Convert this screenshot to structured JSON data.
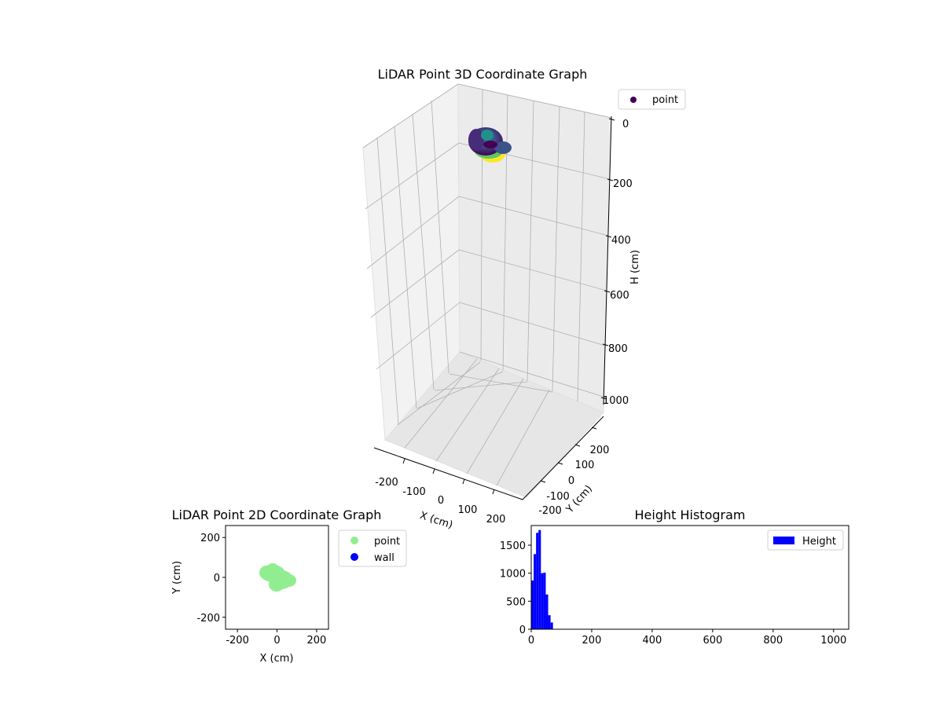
{
  "chart_data": [
    {
      "type": "scatter3d",
      "title": "LiDAR Point 3D Coordinate Graph",
      "xlabel": "X (cm)",
      "ylabel": "Y (cm)",
      "zlabel": "H (cm)",
      "xticks": [
        -200,
        -100,
        0,
        100,
        200
      ],
      "yticks": [
        -200,
        -100,
        0,
        100,
        200
      ],
      "zticks": [
        0,
        200,
        400,
        600,
        800,
        1000
      ],
      "zlim": [
        0,
        1050
      ],
      "zinverted": true,
      "legend": [
        "point"
      ],
      "colors": {
        "low": "#440154",
        "mid": "#21908c",
        "high": "#fde725"
      }
    },
    {
      "type": "scatter",
      "title": "LiDAR Point 2D Coordinate Graph",
      "xlabel": "X (cm)",
      "ylabel": "Y (cm)",
      "xlim": [
        -260,
        260
      ],
      "ylim": [
        -260,
        260
      ],
      "xticks": [
        -200,
        0,
        200
      ],
      "yticks": [
        -200,
        0,
        200
      ],
      "series": [
        {
          "name": "point",
          "color": "#90ee90"
        },
        {
          "name": "wall",
          "color": "#0000ff"
        }
      ]
    },
    {
      "type": "bar",
      "title": "Height Histogram",
      "xlabel": "",
      "ylabel": "",
      "xlim": [
        0,
        1050
      ],
      "ylim": [
        0,
        1850
      ],
      "xticks": [
        0,
        200,
        400,
        600,
        800,
        1000
      ],
      "yticks": [
        0,
        500,
        1000,
        1500
      ],
      "bin_width": 8,
      "bins": [
        0,
        8,
        16,
        24,
        32,
        40,
        48,
        56,
        64,
        72
      ],
      "values": [
        870,
        1340,
        1720,
        1770,
        1000,
        1010,
        620,
        250,
        120,
        0
      ],
      "series_name": "Height",
      "color": "#0000ff"
    }
  ]
}
